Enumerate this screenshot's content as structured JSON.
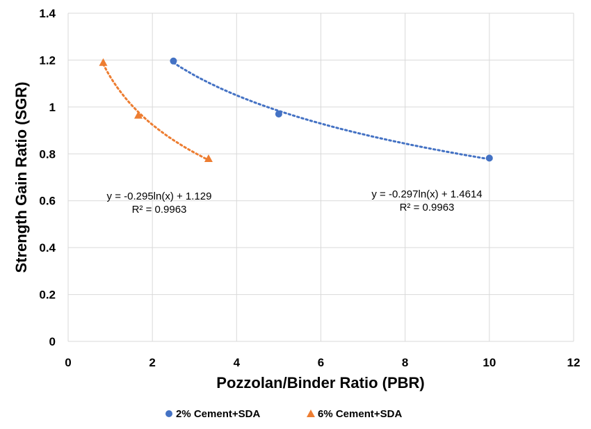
{
  "chart_data": {
    "type": "scatter",
    "xlabel": "Pozzolan/Binder Ratio (PBR)",
    "ylabel": "Strength Gain Ratio (SGR)",
    "xlim": [
      0,
      12
    ],
    "ylim": [
      0,
      1.4
    ],
    "x_ticks": [
      0,
      2,
      4,
      6,
      8,
      10,
      12
    ],
    "y_ticks": [
      0,
      0.2,
      0.4,
      0.6,
      0.8,
      1,
      1.2,
      1.4
    ],
    "grid": true,
    "legend_position": "bottom",
    "series": [
      {
        "name": "2% Cement+SDA",
        "marker": "circle",
        "color": "#4472C4",
        "points": [
          {
            "x": 2.5,
            "y": 1.196
          },
          {
            "x": 5,
            "y": 0.97
          },
          {
            "x": 10,
            "y": 0.782
          }
        ],
        "trendline": {
          "type": "log",
          "a": -0.297,
          "b": 1.4614,
          "x_range": [
            2.5,
            10
          ],
          "equation": "y = -0.297ln(x) + 1.4614",
          "r2": "R² = 0.9963"
        }
      },
      {
        "name": "6% Cement+SDA",
        "marker": "triangle",
        "color": "#ED7D31",
        "points": [
          {
            "x": 0.833,
            "y": 1.19
          },
          {
            "x": 1.667,
            "y": 0.965
          },
          {
            "x": 3.333,
            "y": 0.78
          }
        ],
        "trendline": {
          "type": "log",
          "a": -0.295,
          "b": 1.129,
          "x_range": [
            0.833,
            3.333
          ],
          "equation": "y = -0.295ln(x) + 1.129",
          "r2": "R² = 0.9963"
        }
      }
    ]
  }
}
